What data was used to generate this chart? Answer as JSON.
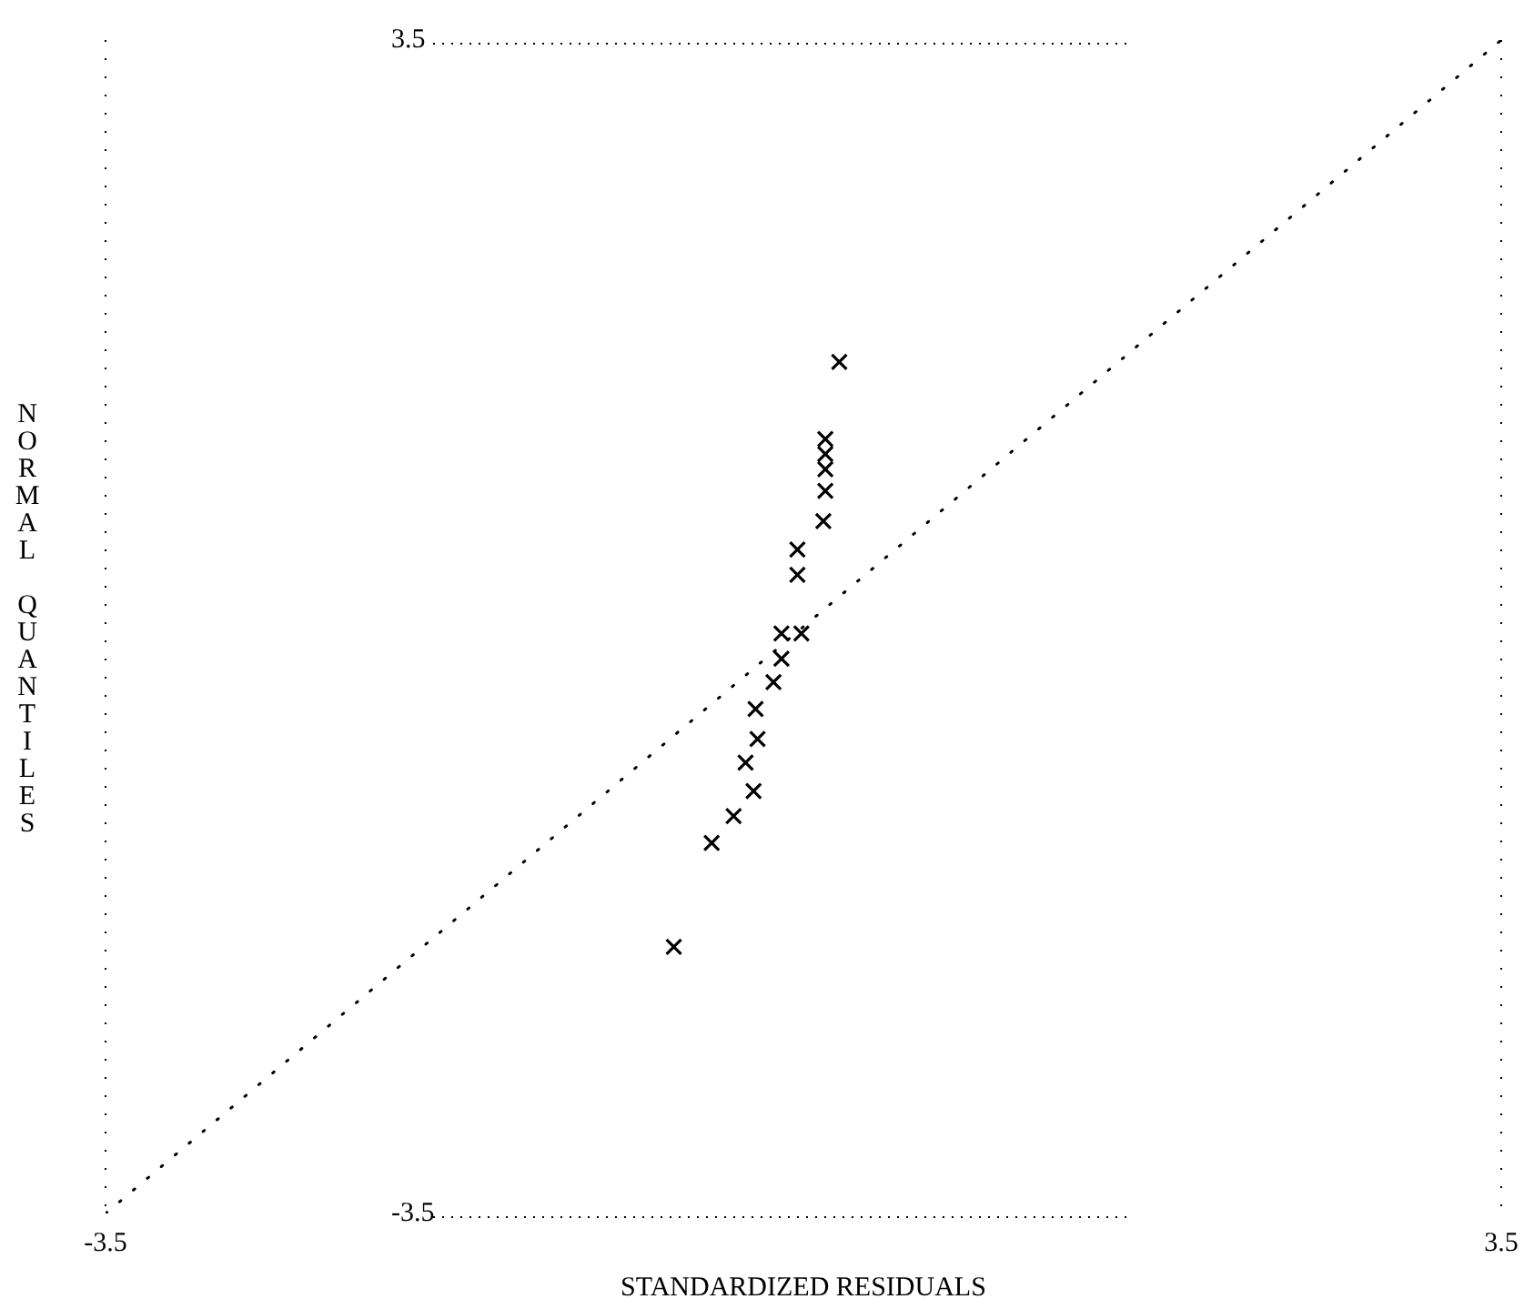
{
  "chart_data": {
    "type": "scatter",
    "xlabel": "STANDARDIZED RESIDUALS",
    "ylabel": "NORMAL QUANTILES",
    "xlim": [
      -3.5,
      3.5
    ],
    "ylim": [
      -3.5,
      3.5
    ],
    "xticks": [
      -3.5,
      3.5
    ],
    "yticks": [
      -3.5,
      3.5
    ],
    "marker": "cross",
    "series": [
      {
        "color": "#000000",
        "x": [
          0.18,
          0.11,
          0.11,
          0.11,
          0.11,
          0.1,
          -0.03,
          -0.03,
          -0.11,
          -0.01,
          -0.11,
          -0.15,
          -0.24,
          -0.23,
          -0.29,
          -0.25,
          -0.35,
          -0.46,
          -0.65
        ],
        "values": [
          1.58,
          1.12,
          1.03,
          0.94,
          0.81,
          0.63,
          0.46,
          0.31,
          -0.04,
          -0.04,
          -0.19,
          -0.33,
          -0.49,
          -0.67,
          -0.81,
          -0.98,
          -1.13,
          -1.29,
          -1.91
        ]
      },
      {
        "type": "line",
        "color": "#000000",
        "line_style": "dotted",
        "marker": "none",
        "x": [
          -3.5,
          3.5
        ],
        "values": [
          -3.5,
          3.5
        ]
      }
    ]
  }
}
